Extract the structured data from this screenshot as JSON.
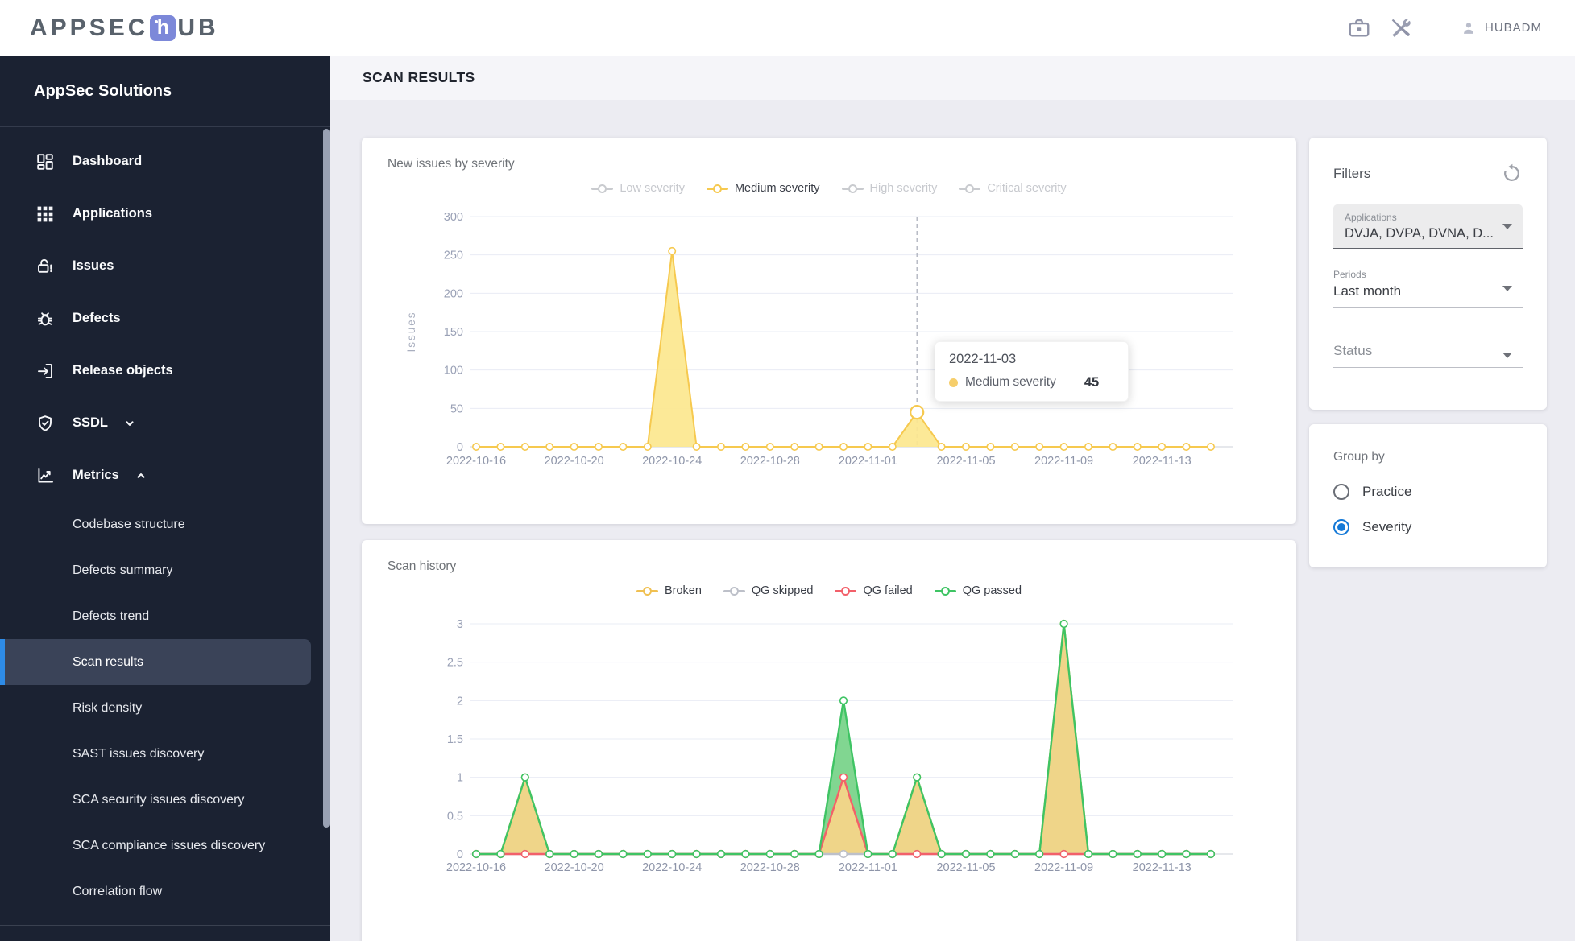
{
  "header": {
    "logo": {
      "prefix": "APPSEC",
      "badge_letter": "h",
      "suffix": "UB"
    },
    "icons": [
      "briefcase-icon",
      "tools-icon",
      "person-icon"
    ],
    "user": "HUBADM"
  },
  "sidebar": {
    "title": "AppSec Solutions",
    "items": [
      {
        "label": "Dashboard",
        "icon": "dashboard",
        "level": "main"
      },
      {
        "label": "Applications",
        "icon": "applications",
        "level": "main"
      },
      {
        "label": "Issues",
        "icon": "issues",
        "level": "main"
      },
      {
        "label": "Defects",
        "icon": "defects",
        "level": "main"
      },
      {
        "label": "Release objects",
        "icon": "release-objects",
        "level": "main"
      },
      {
        "label": "SSDL",
        "icon": "ssdl",
        "level": "main",
        "chevron": "down"
      },
      {
        "label": "Metrics",
        "icon": "metrics",
        "level": "main",
        "chevron": "up"
      },
      {
        "label": "Codebase structure",
        "level": "sub"
      },
      {
        "label": "Defects summary",
        "level": "sub"
      },
      {
        "label": "Defects trend",
        "level": "sub"
      },
      {
        "label": "Scan results",
        "level": "sub",
        "selected": true
      },
      {
        "label": "Risk density",
        "level": "sub"
      },
      {
        "label": "SAST issues discovery",
        "level": "sub"
      },
      {
        "label": "SCA security issues discovery",
        "level": "sub"
      },
      {
        "label": "SCA compliance issues discovery",
        "level": "sub"
      },
      {
        "label": "Correlation flow",
        "level": "sub"
      }
    ]
  },
  "page": {
    "title": "SCAN RESULTS"
  },
  "filters": {
    "title": "Filters",
    "reset_icon": "reset-icon",
    "applications_label": "Applications",
    "applications_value": "DVJA, DVPA, DVNA, D...",
    "periods_label": "Periods",
    "periods_value": "Last month",
    "status_label": "Status"
  },
  "group_by": {
    "title": "Group by",
    "options": [
      {
        "label": "Practice",
        "selected": false
      },
      {
        "label": "Severity",
        "selected": true
      }
    ]
  },
  "chart_data": [
    {
      "type": "area",
      "title": "New issues by severity",
      "ylabel": "Issues",
      "ylim": [
        0,
        300
      ],
      "yticks": [
        0,
        50,
        100,
        150,
        200,
        250,
        300
      ],
      "grid": true,
      "legend_position": "top",
      "dates": [
        "2022-10-16",
        "2022-10-17",
        "2022-10-18",
        "2022-10-19",
        "2022-10-20",
        "2022-10-21",
        "2022-10-22",
        "2022-10-23",
        "2022-10-24",
        "2022-10-25",
        "2022-10-26",
        "2022-10-27",
        "2022-10-28",
        "2022-10-29",
        "2022-10-30",
        "2022-10-31",
        "2022-11-01",
        "2022-11-02",
        "2022-11-03",
        "2022-11-04",
        "2022-11-05",
        "2022-11-06",
        "2022-11-07",
        "2022-11-08",
        "2022-11-09",
        "2022-11-10",
        "2022-11-11",
        "2022-11-12",
        "2022-11-13",
        "2022-11-14",
        "2022-11-15"
      ],
      "x_tick_labels": [
        "2022-10-16",
        "2022-10-20",
        "2022-10-24",
        "2022-10-28",
        "2022-11-01",
        "2022-11-05",
        "2022-11-09",
        "2022-11-13"
      ],
      "series": [
        {
          "name": "Low severity",
          "active": false,
          "color": "#C9CBCF",
          "values": null
        },
        {
          "name": "Medium severity",
          "active": true,
          "color": "#F6C94F",
          "fill": "#FCE78F",
          "values": [
            0,
            0,
            0,
            0,
            0,
            0,
            0,
            0,
            255,
            0,
            0,
            0,
            0,
            0,
            0,
            0,
            0,
            0,
            45,
            0,
            0,
            0,
            0,
            0,
            0,
            0,
            0,
            0,
            0,
            0,
            0
          ]
        },
        {
          "name": "High severity",
          "active": false,
          "color": "#C9CBCF",
          "values": null
        },
        {
          "name": "Critical severity",
          "active": false,
          "color": "#C9CBCF",
          "values": null
        }
      ],
      "tooltip": {
        "date": "2022-11-03",
        "series": "Medium severity",
        "value": "45"
      }
    },
    {
      "type": "area",
      "title": "Scan history",
      "ylabel": "",
      "ylim": [
        0,
        3
      ],
      "yticks": [
        0,
        0.5,
        1,
        1.5,
        2,
        2.5,
        3
      ],
      "grid": true,
      "legend_position": "top",
      "dates": [
        "2022-10-16",
        "2022-10-17",
        "2022-10-18",
        "2022-10-19",
        "2022-10-20",
        "2022-10-21",
        "2022-10-22",
        "2022-10-23",
        "2022-10-24",
        "2022-10-25",
        "2022-10-26",
        "2022-10-27",
        "2022-10-28",
        "2022-10-29",
        "2022-10-30",
        "2022-10-31",
        "2022-11-01",
        "2022-11-02",
        "2022-11-03",
        "2022-11-04",
        "2022-11-05",
        "2022-11-06",
        "2022-11-07",
        "2022-11-08",
        "2022-11-09",
        "2022-11-10",
        "2022-11-11",
        "2022-11-12",
        "2022-11-13",
        "2022-11-14",
        "2022-11-15"
      ],
      "x_tick_labels": [
        "2022-10-16",
        "2022-10-20",
        "2022-10-24",
        "2022-10-28",
        "2022-11-01",
        "2022-11-05",
        "2022-11-09",
        "2022-11-13"
      ],
      "series": [
        {
          "name": "Broken",
          "active": true,
          "color": "#F0C052",
          "fill": "#F8D589",
          "values": [
            0,
            0,
            1,
            0,
            0,
            0,
            0,
            0,
            0,
            0,
            0,
            0,
            0,
            0,
            0,
            1,
            0,
            0,
            1,
            0,
            0,
            0,
            0,
            0,
            3,
            0,
            0,
            0,
            0,
            0,
            0
          ]
        },
        {
          "name": "QG skipped",
          "active": true,
          "color": "#BDC0C9",
          "values": [
            0,
            0,
            0,
            0,
            0,
            0,
            0,
            0,
            0,
            0,
            0,
            0,
            0,
            0,
            0,
            0,
            0,
            0,
            0,
            0,
            0,
            0,
            0,
            0,
            0,
            0,
            0,
            0,
            0,
            0,
            0
          ]
        },
        {
          "name": "QG failed",
          "active": true,
          "color": "#F2606A",
          "values": [
            0,
            0,
            0,
            0,
            0,
            0,
            0,
            0,
            0,
            0,
            0,
            0,
            0,
            0,
            0,
            1,
            0,
            0,
            0,
            0,
            0,
            0,
            0,
            0,
            0,
            0,
            0,
            0,
            0,
            0,
            0
          ]
        },
        {
          "name": "QG passed",
          "active": true,
          "color": "#3FC464",
          "fill": "#77D389",
          "values": [
            0,
            0,
            1,
            0,
            0,
            0,
            0,
            0,
            0,
            0,
            0,
            0,
            0,
            0,
            0,
            2,
            0,
            0,
            1,
            0,
            0,
            0,
            0,
            0,
            3,
            0,
            0,
            0,
            0,
            0,
            0
          ]
        }
      ]
    }
  ]
}
